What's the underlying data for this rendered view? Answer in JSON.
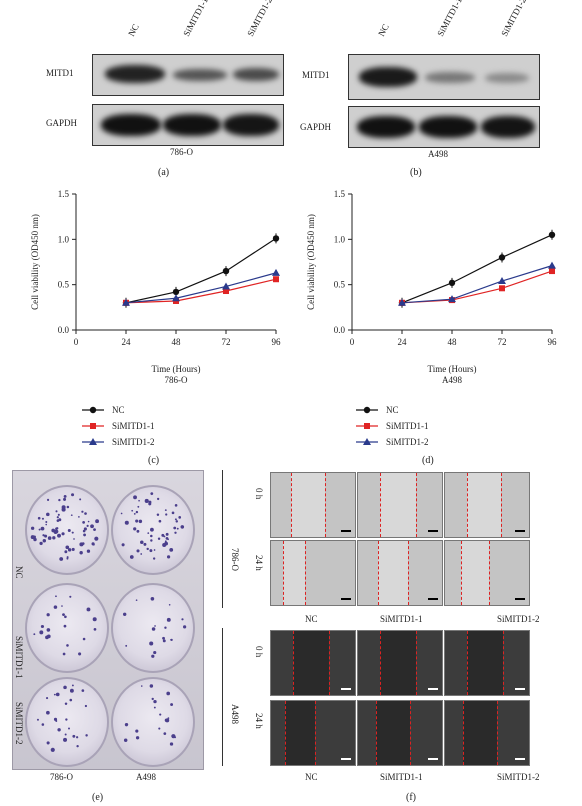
{
  "panel_a": {
    "label": "(a)",
    "cell_line": "786-O",
    "lanes": [
      "NC",
      "SiMITD1-1",
      "SiMITD1-2"
    ],
    "rows": [
      "MITD1",
      "GAPDH"
    ]
  },
  "panel_b": {
    "label": "(b)",
    "cell_line": "A498",
    "lanes": [
      "NC",
      "SiMITD1-1",
      "SiMITD1-2"
    ],
    "rows": [
      "MITD1",
      "GAPDH"
    ]
  },
  "panel_c": {
    "label": "(c)",
    "legend": [
      "NC",
      "SiMITD1-1",
      "SiMITD1-2"
    ]
  },
  "panel_d": {
    "label": "(d)",
    "legend": [
      "NC",
      "SiMITD1-1",
      "SiMITD1-2"
    ]
  },
  "panel_e": {
    "label": "(e)",
    "rows": [
      "NC",
      "SiMITD1-1",
      "SiMITD1-2"
    ],
    "cols": [
      "786-O",
      "A498"
    ]
  },
  "panel_f": {
    "label": "(f)",
    "groups": [
      "786-O",
      "A498"
    ],
    "times": [
      "0 h",
      "24 h"
    ],
    "cols": [
      "NC",
      "SiMITD1-1",
      "SiMITD1-2"
    ]
  },
  "colors": {
    "nc": "#111111",
    "si1": "#e02424",
    "si2": "#2a3a8c"
  },
  "chart_data": [
    {
      "type": "line",
      "title": "786-O",
      "xlabel": "Time (Hours)",
      "ylabel": "Cell viability (OD450 nm)",
      "x": [
        24,
        48,
        72,
        96
      ],
      "xticks": [
        0,
        24,
        48,
        72,
        96
      ],
      "yticks": [
        "0.0",
        "0.5",
        "1.0",
        "1.5"
      ],
      "ylim": [
        0,
        1.5
      ],
      "series": [
        {
          "name": "NC",
          "values": [
            0.3,
            0.42,
            0.65,
            1.01
          ],
          "color": "#111111",
          "marker": "circle"
        },
        {
          "name": "SiMITD1-1",
          "values": [
            0.3,
            0.32,
            0.43,
            0.56
          ],
          "color": "#e02424",
          "marker": "square"
        },
        {
          "name": "SiMITD1-2",
          "values": [
            0.3,
            0.35,
            0.48,
            0.63
          ],
          "color": "#2a3a8c",
          "marker": "triangle"
        }
      ]
    },
    {
      "type": "line",
      "title": "A498",
      "xlabel": "Time (Hours)",
      "ylabel": "Cell viability (OD450 nm)",
      "x": [
        24,
        48,
        72,
        96
      ],
      "xticks": [
        0,
        24,
        48,
        72,
        96
      ],
      "yticks": [
        "0.0",
        "0.5",
        "1.0",
        "1.5"
      ],
      "ylim": [
        0,
        1.5
      ],
      "series": [
        {
          "name": "NC",
          "values": [
            0.3,
            0.52,
            0.8,
            1.05
          ],
          "color": "#111111",
          "marker": "circle"
        },
        {
          "name": "SiMITD1-1",
          "values": [
            0.3,
            0.33,
            0.46,
            0.65
          ],
          "color": "#e02424",
          "marker": "square"
        },
        {
          "name": "SiMITD1-2",
          "values": [
            0.3,
            0.34,
            0.54,
            0.71
          ],
          "color": "#2a3a8c",
          "marker": "triangle"
        }
      ]
    }
  ]
}
